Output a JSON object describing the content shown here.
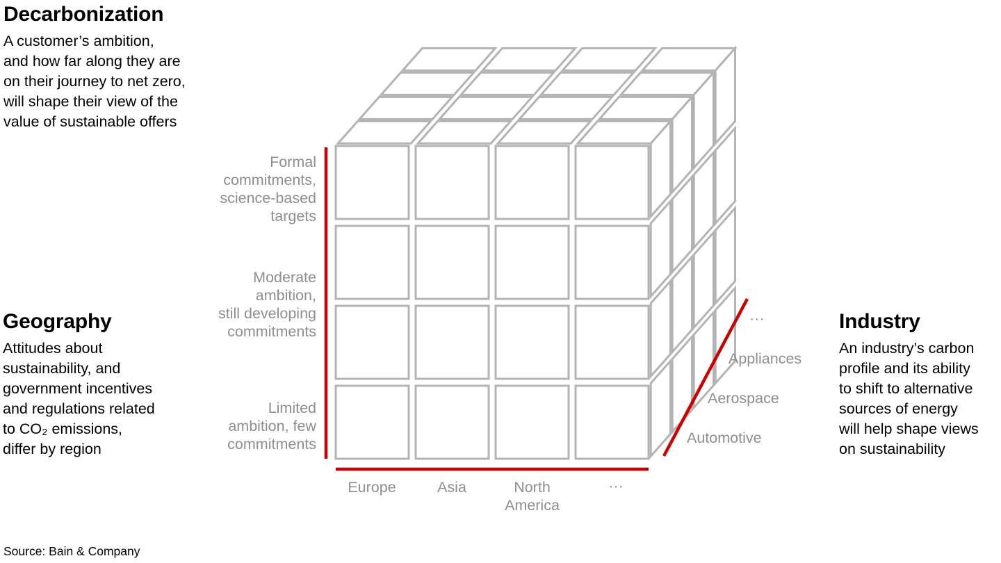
{
  "panel_notes": {
    "decarbonization": {
      "title": "Decarbonization",
      "lines": [
        "A customer’s ambition,",
        "and how far along they are",
        "on their journey to net zero,",
        "will shape their view of the",
        "value of sustainable offers"
      ]
    },
    "geography": {
      "title": "Geography",
      "lines": [
        "Attitudes about",
        "sustainability, and",
        "government incentives",
        "and regulations related",
        "to CO₂ emissions,",
        "differ by region"
      ]
    },
    "industry": {
      "title": "Industry",
      "lines": [
        "An industry’s carbon",
        "profile and its ability",
        "to shift to alternative",
        "sources of energy",
        "will help shape views",
        "on sustainability"
      ]
    }
  },
  "cube": {
    "grid_size": "4x4x4",
    "y_axis": {
      "dimension": "Decarbonization",
      "labels": [
        {
          "lines": [
            "Formal",
            "commitments,",
            "science-based",
            "targets"
          ]
        },
        {
          "lines": [
            "Moderate",
            "ambition,",
            "still developing",
            "commitments"
          ]
        },
        {
          "lines": [
            "Limited",
            "ambition, few",
            "commitments"
          ]
        }
      ]
    },
    "x_axis": {
      "dimension": "Geography",
      "labels": [
        "Europe",
        "Asia",
        "North America",
        "···"
      ]
    },
    "z_axis": {
      "dimension": "Industry",
      "labels": [
        "Automotive",
        "Aerospace",
        "Appliances",
        "···"
      ]
    }
  },
  "colors": {
    "accent_red": "#cc0000",
    "cube_gray": "#b3b3b3",
    "label_gray": "#8e8e8e"
  },
  "source": "Source: Bain & Company"
}
